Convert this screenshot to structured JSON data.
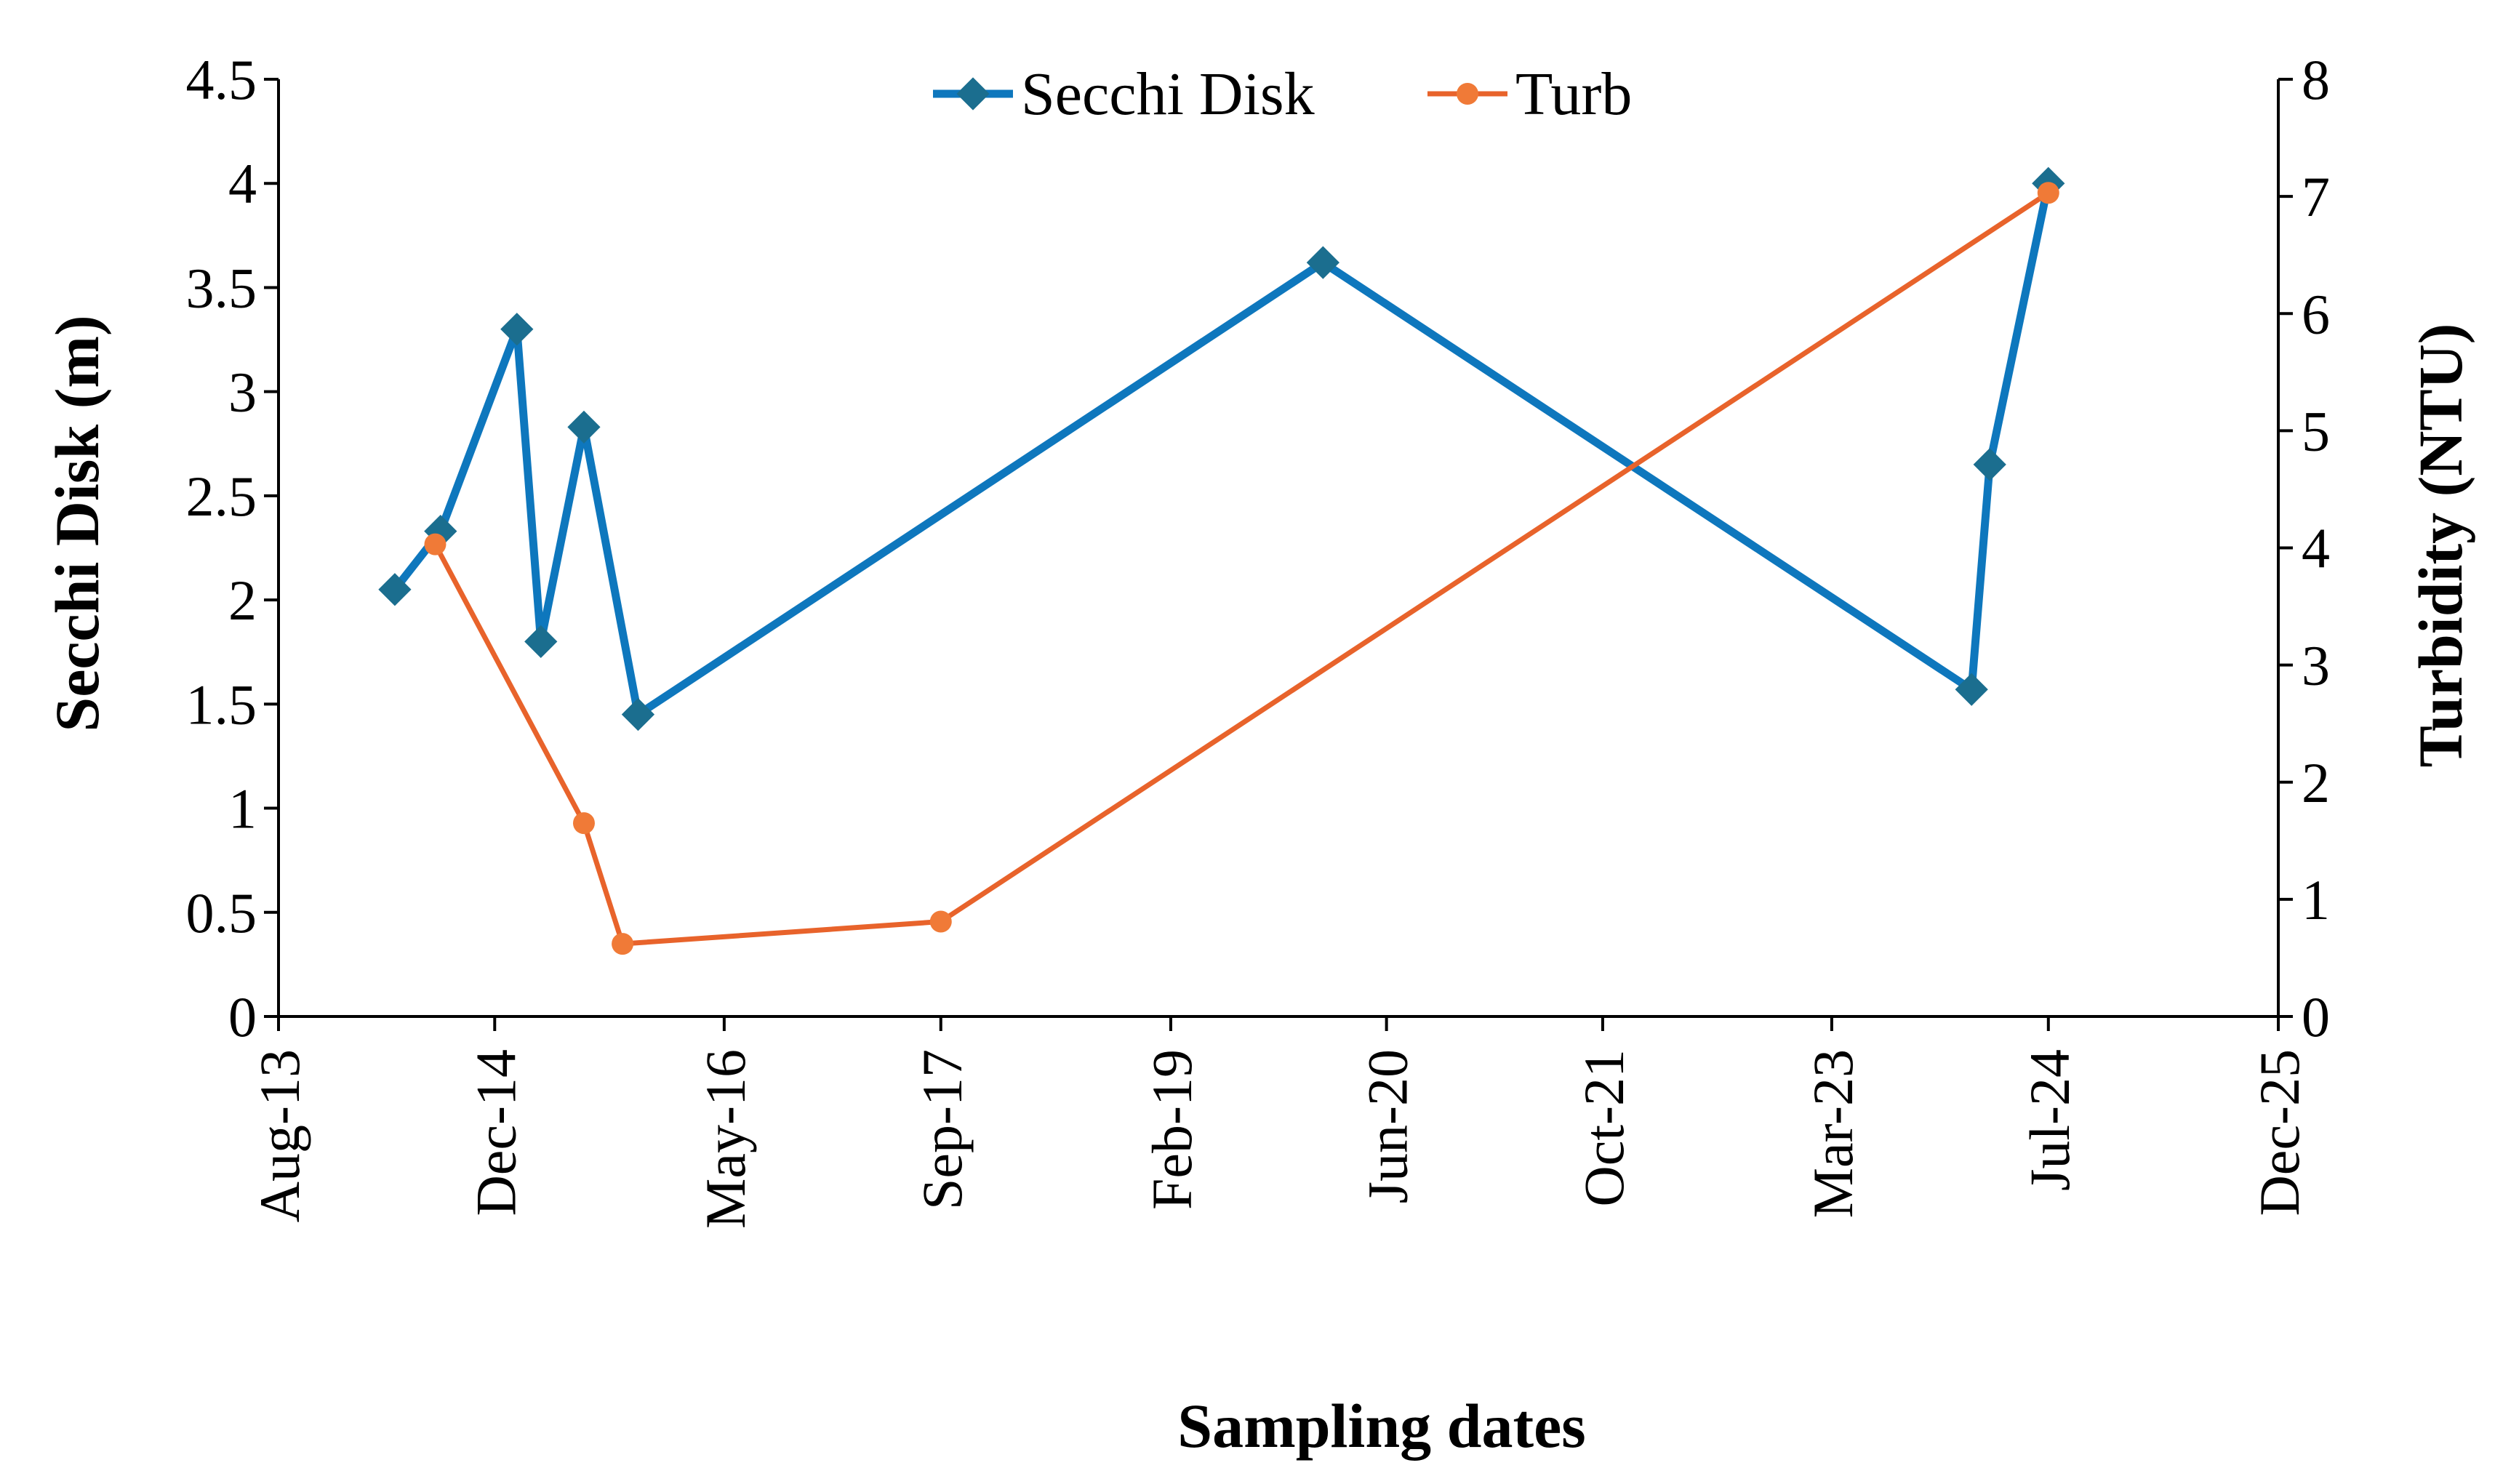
{
  "chart_data": {
    "type": "line",
    "xlabel": "Sampling dates",
    "ylabel": "Secchi Disk (m)",
    "y2label": "Turbidity (NTU)",
    "x_ticks": [
      {
        "date": "2013-08-01",
        "label": "Aug-13"
      },
      {
        "date": "2014-12-01",
        "label": "Dec-14"
      },
      {
        "date": "2016-05-01",
        "label": "May-16"
      },
      {
        "date": "2017-09-01",
        "label": "Sep-17"
      },
      {
        "date": "2019-02-01",
        "label": "Feb-19"
      },
      {
        "date": "2020-06-01",
        "label": "Jun-20"
      },
      {
        "date": "2021-10-01",
        "label": "Oct-21"
      },
      {
        "date": "2023-03-01",
        "label": "Mar-23"
      },
      {
        "date": "2024-07-01",
        "label": "Jul-24"
      },
      {
        "date": "2025-12-01",
        "label": "Dec-25"
      }
    ],
    "xlim": [
      "2013-08-01",
      "2025-12-01"
    ],
    "ylim": [
      0,
      4.5
    ],
    "y_ticks": [
      "0",
      "0.5",
      "1",
      "1.5",
      "2",
      "2.5",
      "3",
      "3.5",
      "4",
      "4.5"
    ],
    "y2lim": [
      0,
      8
    ],
    "y2_ticks": [
      "0",
      "1",
      "2",
      "3",
      "4",
      "5",
      "6",
      "7",
      "8"
    ],
    "legend_position": "top-center",
    "grid": false,
    "series": [
      {
        "name": "Secchi Disk",
        "axis": "left",
        "color": "#0E77BD",
        "marker": "diamond",
        "points": [
          {
            "x": "2014-04-20",
            "y": 2.05
          },
          {
            "x": "2014-08-01",
            "y": 2.33
          },
          {
            "x": "2015-01-20",
            "y": 3.3
          },
          {
            "x": "2015-03-15",
            "y": 1.8
          },
          {
            "x": "2015-06-20",
            "y": 2.83
          },
          {
            "x": "2015-10-20",
            "y": 1.45
          },
          {
            "x": "2020-01-10",
            "y": 3.62
          },
          {
            "x": "2024-01-10",
            "y": 1.57
          },
          {
            "x": "2024-02-20",
            "y": 2.65
          },
          {
            "x": "2024-07-01",
            "y": 4.0
          }
        ]
      },
      {
        "name": "Turb",
        "axis": "right",
        "color": "#E8632B",
        "marker": "circle",
        "points": [
          {
            "x": "2014-07-20",
            "y": 4.03
          },
          {
            "x": "2015-06-20",
            "y": 1.65
          },
          {
            "x": "2015-09-15",
            "y": 0.62
          },
          {
            "x": "2017-09-01",
            "y": 0.81
          },
          {
            "x": "2024-07-01",
            "y": 7.03
          }
        ]
      }
    ]
  }
}
